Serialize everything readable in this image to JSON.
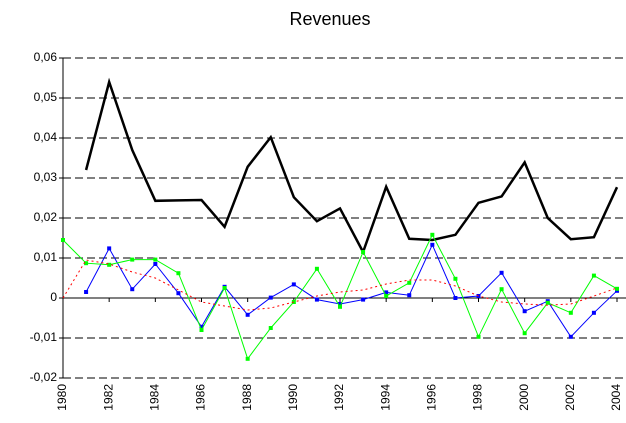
{
  "chart_data": {
    "type": "line",
    "title": "Revenues",
    "x": [
      1980,
      1981,
      1982,
      1983,
      1984,
      1985,
      1986,
      1987,
      1988,
      1989,
      1990,
      1991,
      1992,
      1993,
      1994,
      1995,
      1996,
      1997,
      1998,
      1999,
      2000,
      2001,
      2002,
      2003,
      2004
    ],
    "series": [
      {
        "color": "#000000",
        "width": 2.5,
        "dash": "solid",
        "marker": "none",
        "values": [
          null,
          0.032,
          0.054,
          0.037,
          0.0243,
          0.0244,
          0.0245,
          0.0178,
          0.0328,
          0.0402,
          0.0252,
          0.0192,
          0.0224,
          0.0115,
          0.0278,
          0.0148,
          0.0145,
          0.0158,
          0.0238,
          0.0254,
          0.0339,
          0.02,
          0.0147,
          0.0152,
          0.0277
        ]
      },
      {
        "color": "#0000ff",
        "width": 1,
        "dash": "solid",
        "marker": "square",
        "values": [
          null,
          0.0015,
          0.0124,
          0.0022,
          0.0085,
          0.0012,
          -0.0072,
          0.0028,
          -0.0042,
          0.0001,
          0.0034,
          -0.0004,
          -0.0015,
          -0.0004,
          0.0014,
          0.0007,
          0.0133,
          0.0,
          0.0005,
          0.0063,
          -0.0033,
          -0.0008,
          -0.0097,
          -0.0037,
          0.0018
        ]
      },
      {
        "color": "#00ff00",
        "width": 1,
        "dash": "solid",
        "marker": "square",
        "values": [
          0.0145,
          0.0087,
          0.0083,
          0.0096,
          0.0096,
          0.0062,
          -0.008,
          0.0025,
          -0.0152,
          -0.0075,
          -0.001,
          0.0073,
          -0.0022,
          0.0115,
          0.0005,
          0.0038,
          0.0158,
          0.0048,
          -0.0097,
          0.0022,
          -0.0088,
          -0.0012,
          -0.0037,
          0.0056,
          0.0023
        ]
      },
      {
        "color": "#ff0000",
        "width": 1,
        "dash": "dotted",
        "marker": "none",
        "values": [
          0.0,
          0.0095,
          0.0085,
          0.0065,
          0.005,
          0.002,
          -0.001,
          -0.002,
          -0.003,
          -0.0025,
          -0.001,
          0.0005,
          0.0015,
          0.002,
          0.0035,
          0.0045,
          0.0045,
          0.003,
          0.0005,
          -0.001,
          -0.0015,
          -0.0018,
          -0.0015,
          0.0005,
          0.0025
        ]
      }
    ],
    "xlim": [
      1980,
      2004
    ],
    "xticks": [
      1980,
      1982,
      1984,
      1986,
      1988,
      1990,
      1992,
      1994,
      1996,
      1998,
      2000,
      2002,
      2004
    ],
    "ylim": [
      -0.02,
      0.06
    ],
    "yticks": [
      {
        "value": -0.02,
        "label": "-0,02"
      },
      {
        "value": -0.01,
        "label": "-0,01"
      },
      0,
      {
        "value": 0.01,
        "label": "0,01"
      },
      {
        "value": 0.02,
        "label": "0,02"
      },
      {
        "value": 0.03,
        "label": "0,03"
      },
      {
        "value": 0.04,
        "label": "0,04"
      },
      {
        "value": 0.05,
        "label": "0,05"
      },
      {
        "value": 0.06,
        "label": "0,06"
      }
    ],
    "grid": true
  }
}
